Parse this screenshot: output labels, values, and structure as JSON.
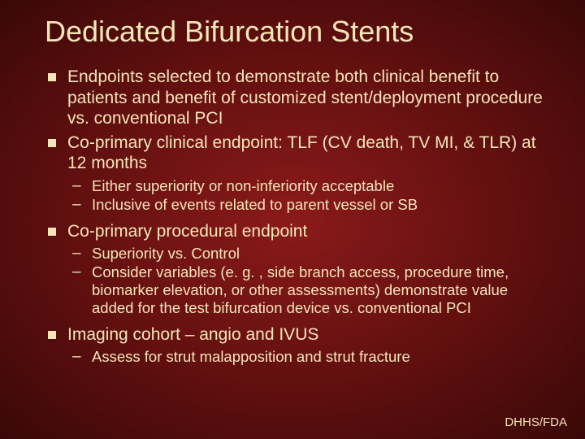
{
  "slide": {
    "title": "Dedicated Bifurcation Stents",
    "footer": "DHHS/FDA",
    "background": {
      "center_color": "#8b1a1a",
      "mid_color": "#5c0e0e",
      "edge_color": "#3a0808"
    },
    "text_color": "#f5e6b8",
    "title_fontsize": 36,
    "body_fontsize_l1": 21,
    "body_fontsize_l2": 18.5,
    "bullets": [
      {
        "level": 1,
        "text": "Endpoints selected to demonstrate both clinical benefit to patients and benefit of customized stent/deployment procedure vs. conventional PCI"
      },
      {
        "level": 1,
        "text": "Co-primary clinical endpoint: TLF (CV death, TV MI, & TLR) at 12 months"
      },
      {
        "level": 2,
        "text": "Either superiority or non-inferiority acceptable"
      },
      {
        "level": 2,
        "text": "Inclusive of events related to parent vessel or SB"
      },
      {
        "level": 1,
        "text": "Co-primary procedural endpoint"
      },
      {
        "level": 2,
        "text": "Superiority vs. Control"
      },
      {
        "level": 2,
        "text": "Consider variables (e. g. , side branch access, procedure time, biomarker elevation, or other assessments) demonstrate value added for the test bifurcation device vs. conventional PCI"
      },
      {
        "level": 1,
        "text": "Imaging cohort – angio and IVUS"
      },
      {
        "level": 2,
        "text": "Assess for strut malapposition and strut fracture"
      }
    ]
  }
}
